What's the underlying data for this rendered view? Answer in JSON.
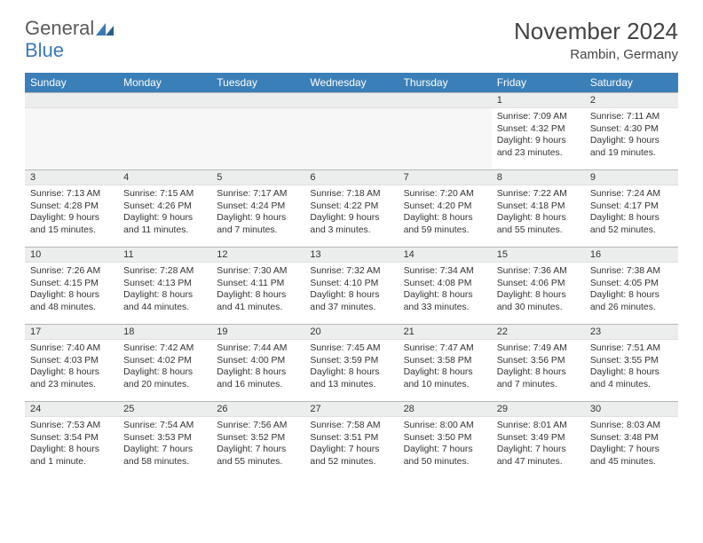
{
  "brand": {
    "word1": "General",
    "word2": "Blue"
  },
  "title": "November 2024",
  "location": "Rambin, Germany",
  "colors": {
    "header_bg": "#3b7fb8",
    "header_fg": "#ffffff",
    "daynum_bg": "#eceded",
    "border": "#b8b8b8",
    "text": "#333333",
    "brand_gray": "#5a5a5a",
    "brand_blue": "#3a7ab8"
  },
  "columns": [
    "Sunday",
    "Monday",
    "Tuesday",
    "Wednesday",
    "Thursday",
    "Friday",
    "Saturday"
  ],
  "weeks": [
    [
      null,
      null,
      null,
      null,
      null,
      {
        "n": "1",
        "sr": "7:09 AM",
        "ss": "4:32 PM",
        "dl": "9 hours and 23 minutes."
      },
      {
        "n": "2",
        "sr": "7:11 AM",
        "ss": "4:30 PM",
        "dl": "9 hours and 19 minutes."
      }
    ],
    [
      {
        "n": "3",
        "sr": "7:13 AM",
        "ss": "4:28 PM",
        "dl": "9 hours and 15 minutes."
      },
      {
        "n": "4",
        "sr": "7:15 AM",
        "ss": "4:26 PM",
        "dl": "9 hours and 11 minutes."
      },
      {
        "n": "5",
        "sr": "7:17 AM",
        "ss": "4:24 PM",
        "dl": "9 hours and 7 minutes."
      },
      {
        "n": "6",
        "sr": "7:18 AM",
        "ss": "4:22 PM",
        "dl": "9 hours and 3 minutes."
      },
      {
        "n": "7",
        "sr": "7:20 AM",
        "ss": "4:20 PM",
        "dl": "8 hours and 59 minutes."
      },
      {
        "n": "8",
        "sr": "7:22 AM",
        "ss": "4:18 PM",
        "dl": "8 hours and 55 minutes."
      },
      {
        "n": "9",
        "sr": "7:24 AM",
        "ss": "4:17 PM",
        "dl": "8 hours and 52 minutes."
      }
    ],
    [
      {
        "n": "10",
        "sr": "7:26 AM",
        "ss": "4:15 PM",
        "dl": "8 hours and 48 minutes."
      },
      {
        "n": "11",
        "sr": "7:28 AM",
        "ss": "4:13 PM",
        "dl": "8 hours and 44 minutes."
      },
      {
        "n": "12",
        "sr": "7:30 AM",
        "ss": "4:11 PM",
        "dl": "8 hours and 41 minutes."
      },
      {
        "n": "13",
        "sr": "7:32 AM",
        "ss": "4:10 PM",
        "dl": "8 hours and 37 minutes."
      },
      {
        "n": "14",
        "sr": "7:34 AM",
        "ss": "4:08 PM",
        "dl": "8 hours and 33 minutes."
      },
      {
        "n": "15",
        "sr": "7:36 AM",
        "ss": "4:06 PM",
        "dl": "8 hours and 30 minutes."
      },
      {
        "n": "16",
        "sr": "7:38 AM",
        "ss": "4:05 PM",
        "dl": "8 hours and 26 minutes."
      }
    ],
    [
      {
        "n": "17",
        "sr": "7:40 AM",
        "ss": "4:03 PM",
        "dl": "8 hours and 23 minutes."
      },
      {
        "n": "18",
        "sr": "7:42 AM",
        "ss": "4:02 PM",
        "dl": "8 hours and 20 minutes."
      },
      {
        "n": "19",
        "sr": "7:44 AM",
        "ss": "4:00 PM",
        "dl": "8 hours and 16 minutes."
      },
      {
        "n": "20",
        "sr": "7:45 AM",
        "ss": "3:59 PM",
        "dl": "8 hours and 13 minutes."
      },
      {
        "n": "21",
        "sr": "7:47 AM",
        "ss": "3:58 PM",
        "dl": "8 hours and 10 minutes."
      },
      {
        "n": "22",
        "sr": "7:49 AM",
        "ss": "3:56 PM",
        "dl": "8 hours and 7 minutes."
      },
      {
        "n": "23",
        "sr": "7:51 AM",
        "ss": "3:55 PM",
        "dl": "8 hours and 4 minutes."
      }
    ],
    [
      {
        "n": "24",
        "sr": "7:53 AM",
        "ss": "3:54 PM",
        "dl": "8 hours and 1 minute."
      },
      {
        "n": "25",
        "sr": "7:54 AM",
        "ss": "3:53 PM",
        "dl": "7 hours and 58 minutes."
      },
      {
        "n": "26",
        "sr": "7:56 AM",
        "ss": "3:52 PM",
        "dl": "7 hours and 55 minutes."
      },
      {
        "n": "27",
        "sr": "7:58 AM",
        "ss": "3:51 PM",
        "dl": "7 hours and 52 minutes."
      },
      {
        "n": "28",
        "sr": "8:00 AM",
        "ss": "3:50 PM",
        "dl": "7 hours and 50 minutes."
      },
      {
        "n": "29",
        "sr": "8:01 AM",
        "ss": "3:49 PM",
        "dl": "7 hours and 47 minutes."
      },
      {
        "n": "30",
        "sr": "8:03 AM",
        "ss": "3:48 PM",
        "dl": "7 hours and 45 minutes."
      }
    ]
  ],
  "labels": {
    "sunrise": "Sunrise:",
    "sunset": "Sunset:",
    "daylight": "Daylight:"
  }
}
